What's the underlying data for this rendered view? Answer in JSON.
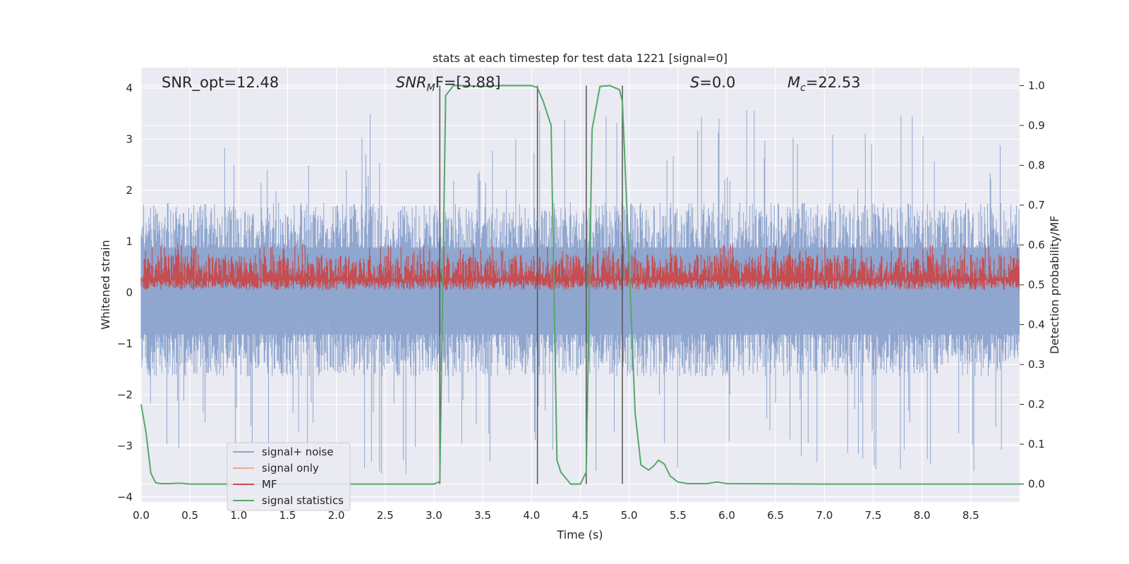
{
  "chart_data": {
    "type": "line",
    "title": "stats at each timestep for test data 1221 [signal=0]",
    "xlabel": "Time (s)",
    "ylabel_left": "Whitened strain",
    "ylabel_right": "Detection probability/MF",
    "xlim": [
      0,
      9.0
    ],
    "ylim_left": [
      -4.1,
      4.4
    ],
    "ylim_right": [
      -0.045,
      1.045
    ],
    "x_ticks": [
      "0.0",
      "0.5",
      "1.0",
      "1.5",
      "2.0",
      "2.5",
      "3.0",
      "3.5",
      "4.0",
      "4.5",
      "5.0",
      "5.5",
      "6.0",
      "6.5",
      "7.0",
      "7.5",
      "8.0",
      "8.5"
    ],
    "y_ticks_left": [
      "4",
      "3",
      "2",
      "1",
      "0",
      "−1",
      "−2",
      "−3",
      "−4"
    ],
    "y_ticks_right": [
      "1.0",
      "0.9",
      "0.8",
      "0.7",
      "0.6",
      "0.5",
      "0.4",
      "0.3",
      "0.2",
      "0.1",
      "0.0"
    ],
    "grid": true,
    "legend_placement": "lower-left",
    "annotations": {
      "snr_opt": "SNR_opt=12.48",
      "snr_mf_sym": "SNR",
      "snr_mf_sub": "M",
      "snr_mf_rest": "F=[3.88]",
      "s_sym": "S",
      "s_rest": "=0.0",
      "mc_sym": "M",
      "mc_sub": "c",
      "mc_rest": "=22.53"
    },
    "markers_x": [
      3.06,
      4.06,
      4.56,
      4.93
    ],
    "series": [
      {
        "name": "signal+ noise",
        "color": "#8fa6cf",
        "axis": "left",
        "kind": "noise",
        "typical_range": [
          -1.5,
          1.6
        ],
        "extreme_range": [
          -3.6,
          3.6
        ]
      },
      {
        "name": "signal only",
        "color": "#eea88f",
        "axis": "left",
        "kind": "flat",
        "values_desc": "0"
      },
      {
        "name": "MF",
        "color": "#c44e52",
        "axis": "left",
        "kind": "noise",
        "typical_range": [
          0.05,
          0.75
        ],
        "extreme_range": [
          0.0,
          0.95
        ]
      },
      {
        "name": "signal statistics",
        "color": "#55a868",
        "axis": "right",
        "x": [
          0.0,
          0.05,
          0.1,
          0.15,
          0.2,
          0.3,
          0.4,
          0.5,
          0.6,
          0.8,
          1.0,
          1.5,
          2.0,
          2.5,
          2.9,
          3.0,
          3.06,
          3.12,
          3.2,
          3.3,
          3.5,
          3.7,
          4.0,
          4.06,
          4.12,
          4.2,
          4.26,
          4.3,
          4.4,
          4.5,
          4.56,
          4.62,
          4.7,
          4.8,
          4.9,
          4.93,
          5.0,
          5.06,
          5.12,
          5.2,
          5.25,
          5.3,
          5.36,
          5.42,
          5.5,
          5.6,
          5.8,
          5.9,
          6.0,
          7.0,
          8.0,
          9.0
        ],
        "y": [
          0.2,
          0.13,
          0.027,
          0.003,
          0.001,
          0.001,
          0.002,
          0.0,
          0.0,
          0.0,
          0.0,
          0.0,
          0.0,
          0.0,
          0.0,
          0.0,
          0.006,
          0.975,
          1.0,
          1.0,
          0.998,
          1.0,
          1.0,
          0.995,
          0.96,
          0.9,
          0.06,
          0.03,
          0.0,
          0.0,
          0.03,
          0.89,
          0.998,
          1.0,
          0.99,
          0.96,
          0.55,
          0.18,
          0.048,
          0.035,
          0.045,
          0.06,
          0.05,
          0.02,
          0.005,
          0.001,
          0.001,
          0.005,
          0.001,
          0.0,
          0.0,
          0.0
        ]
      }
    ]
  }
}
